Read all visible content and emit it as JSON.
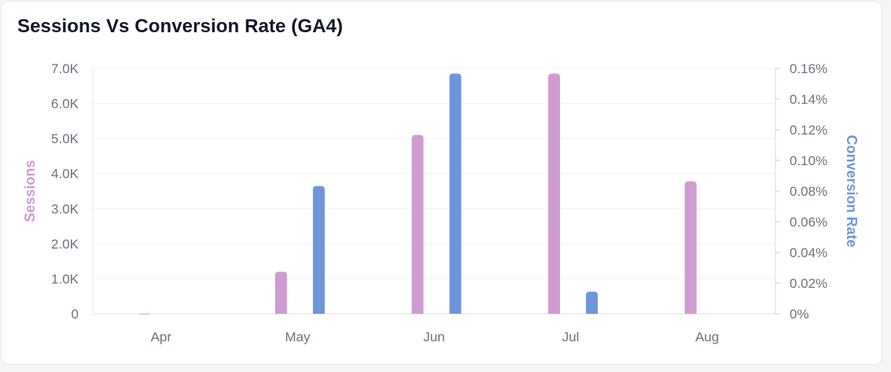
{
  "card": {
    "title": "Sessions Vs Conversion Rate (GA4)"
  },
  "chart_data": {
    "type": "bar",
    "title": "Sessions Vs Conversion Rate (GA4)",
    "categories": [
      "Apr",
      "May",
      "Jun",
      "Jul",
      "Aug"
    ],
    "series": [
      {
        "name": "Sessions",
        "axis": "left",
        "color": "#cf9bd0",
        "values": [
          5,
          1200,
          5100,
          6850,
          3780
        ]
      },
      {
        "name": "Conversion Rate",
        "axis": "right",
        "color": "#6e96d8",
        "values": [
          0,
          0.0833,
          0.1566,
          0.0144,
          0
        ]
      }
    ],
    "y_left": {
      "label": "Sessions",
      "range": [
        0,
        7000
      ],
      "ticks": [
        0,
        1000,
        2000,
        3000,
        4000,
        5000,
        6000,
        7000
      ],
      "tick_labels": [
        "0",
        "1.0K",
        "2.0K",
        "3.0K",
        "4.0K",
        "5.0K",
        "6.0K",
        "7.0K"
      ]
    },
    "y_right": {
      "label": "Conversion Rate",
      "unit": "%",
      "range": [
        0,
        0.16
      ],
      "ticks": [
        0,
        0.02,
        0.04,
        0.06,
        0.08,
        0.1,
        0.12,
        0.14,
        0.16
      ],
      "tick_labels": [
        "0%",
        "0.02%",
        "0.04%",
        "0.06%",
        "0.08%",
        "0.10%",
        "0.12%",
        "0.14%",
        "0.16%"
      ]
    },
    "grid": true,
    "legend": "none"
  }
}
